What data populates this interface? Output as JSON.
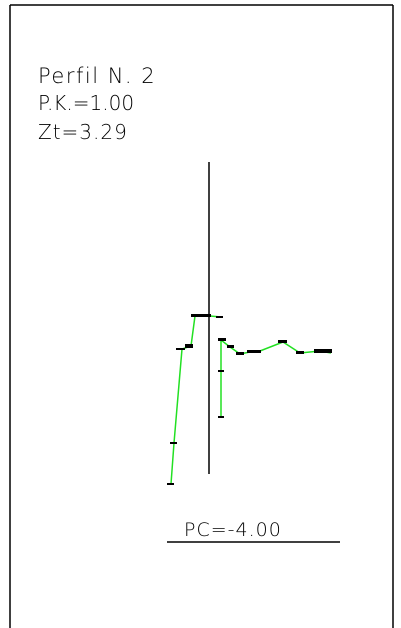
{
  "header": {
    "title": "Perfil N. 2",
    "pk": "P.K.=1.00",
    "zt": "Zt=3.29"
  },
  "footer": {
    "pc": "PC=-4.00"
  }
}
